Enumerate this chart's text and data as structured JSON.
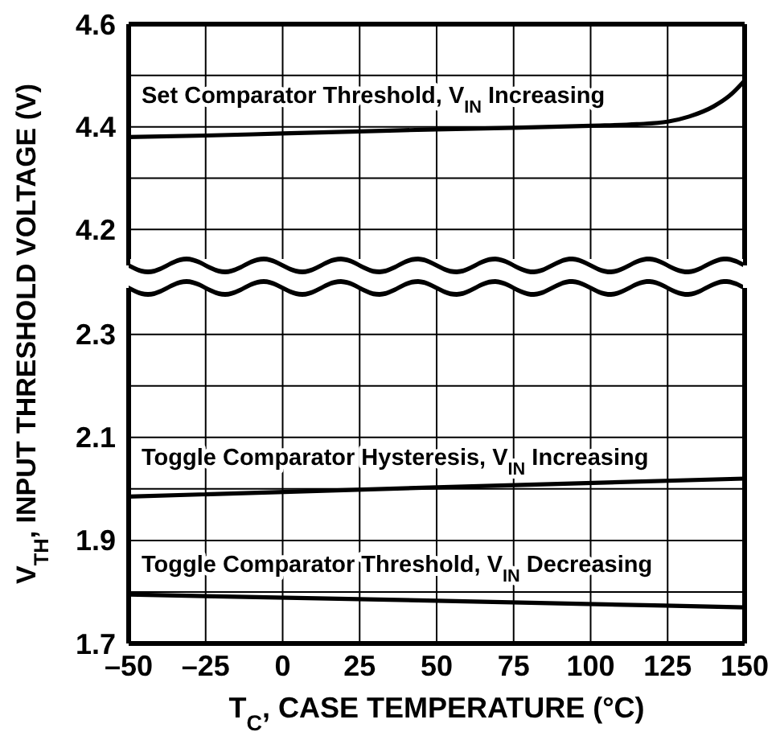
{
  "chart_data": [
    {
      "type": "line",
      "ylabel": "V$_{TH}$, INPUT THRESHOLD VOLTAGE (V)",
      "xlim": [
        -50,
        150
      ],
      "xticks": [
        -50,
        -25,
        0,
        25,
        50,
        75,
        100,
        125,
        150
      ],
      "ylim": [
        4.13,
        4.6
      ],
      "yticks": [
        4.2,
        {
          "value": 4.3,
          "label": null
        },
        4.4,
        {
          "value": 4.5,
          "label": null
        },
        4.6
      ],
      "grid": true,
      "tick_labels": "y",
      "legend": false,
      "series": [
        {
          "name": "Set Comparator Threshold, V$_{IN}$ Increasing",
          "color": "#000000",
          "x": [
            -50,
            -25,
            0,
            25,
            50,
            75,
            100,
            115,
            125,
            132,
            140,
            145,
            150
          ],
          "values": [
            4.38,
            4.383,
            4.387,
            4.391,
            4.395,
            4.398,
            4.402,
            4.405,
            4.41,
            4.42,
            4.44,
            4.46,
            4.49
          ]
        }
      ]
    },
    {
      "type": "line",
      "xlabel": "T$_{C}$, CASE TEMPERATURE (°C)",
      "xlim": [
        -50,
        150
      ],
      "xticks": [
        {
          "value": -50,
          "label": "–50"
        },
        {
          "value": -25,
          "label": "–25"
        },
        0,
        25,
        50,
        75,
        100,
        125,
        150
      ],
      "ylim": [
        1.7,
        2.39
      ],
      "yticks": [
        1.7,
        {
          "value": 1.8,
          "label": null
        },
        1.9,
        {
          "value": 2.0,
          "label": null
        },
        2.1,
        {
          "value": 2.2,
          "label": null
        },
        2.3
      ],
      "grid": true,
      "legend": false,
      "series": [
        {
          "name": "Toggle Comparator Hysteresis, V$_{IN}$ Increasing",
          "color": "#000000",
          "x": [
            -50,
            50,
            150
          ],
          "values": [
            1.985,
            2.003,
            2.02
          ]
        },
        {
          "name": "Toggle Comparator Threshold, V$_{IN}$ Decreasing",
          "color": "#000000",
          "x": [
            -50,
            50,
            150
          ],
          "values": [
            1.795,
            1.783,
            1.77
          ]
        }
      ]
    }
  ]
}
